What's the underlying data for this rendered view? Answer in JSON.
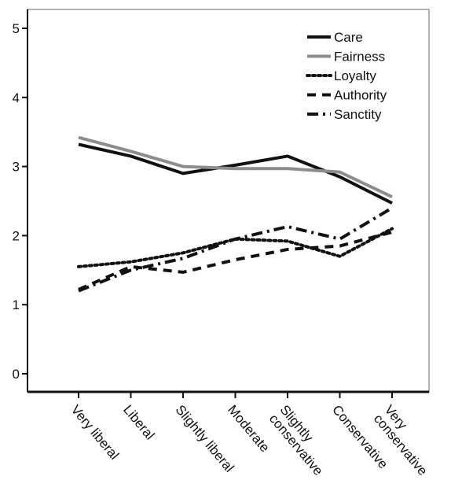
{
  "chart_data": {
    "type": "line",
    "categories": [
      "Very liberal",
      "Liberal",
      "Slightly liberal",
      "Moderate",
      "Slightly conservative",
      "Conservative",
      "Very conservative"
    ],
    "category_lines": [
      [
        "Very liberal"
      ],
      [
        "Liberal"
      ],
      [
        "Slightly liberal"
      ],
      [
        "Moderate"
      ],
      [
        "Slightly",
        "conservative"
      ],
      [
        "Conservative"
      ],
      [
        "Very",
        "conservative"
      ]
    ],
    "ylim": [
      0,
      5
    ],
    "yticks": [
      0,
      1,
      2,
      3,
      4,
      5
    ],
    "legend_position": "top-right",
    "grid": false,
    "series": [
      {
        "name": "Care",
        "values": [
          3.32,
          3.15,
          2.9,
          3.02,
          3.15,
          2.85,
          2.47
        ],
        "color": "#111111",
        "dash": "solid",
        "width": 4
      },
      {
        "name": "Fairness",
        "values": [
          3.42,
          3.22,
          3.0,
          2.97,
          2.97,
          2.92,
          2.56
        ],
        "color": "#8c8c8c",
        "dash": "solid",
        "width": 4
      },
      {
        "name": "Loyalty",
        "values": [
          1.55,
          1.62,
          1.75,
          1.95,
          1.92,
          1.7,
          2.1
        ],
        "color": "#111111",
        "dash": "dotted",
        "width": 4
      },
      {
        "name": "Authority",
        "values": [
          1.22,
          1.55,
          1.47,
          1.65,
          1.8,
          1.85,
          2.05
        ],
        "color": "#111111",
        "dash": "dashed",
        "width": 4
      },
      {
        "name": "Sanctity",
        "values": [
          1.2,
          1.5,
          1.67,
          1.95,
          2.13,
          1.95,
          2.4
        ],
        "color": "#111111",
        "dash": "dashdot",
        "width": 4
      }
    ]
  }
}
